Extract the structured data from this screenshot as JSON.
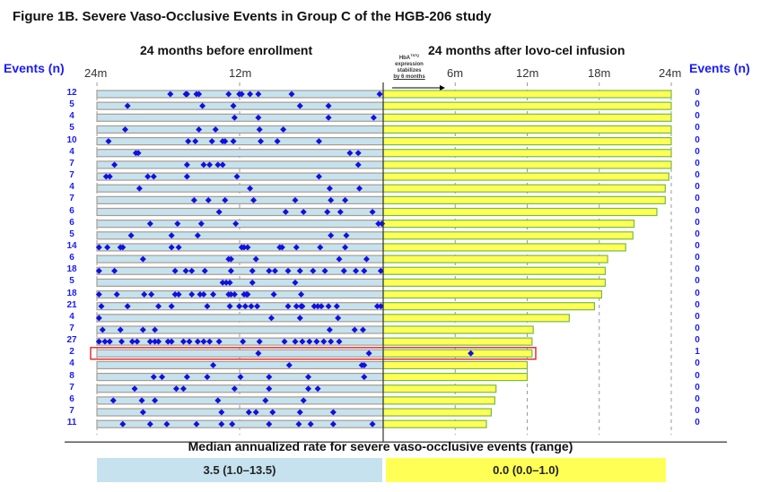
{
  "chart_data": {
    "type": "scatter",
    "title": "Figure 1B. Severe Vaso-Occlusive Events in Group C of the HGB-206 study",
    "left_panel": {
      "title": "24 months before enrollment",
      "ticks": [
        "24m",
        "12m"
      ],
      "xlim_months_before": [
        24,
        0
      ]
    },
    "right_panel": {
      "title": "24 months after lovo-cel infusion",
      "ticks": [
        "6m",
        "12m",
        "18m",
        "24m"
      ],
      "xlim_months_after": [
        0,
        24
      ],
      "annotation": [
        "HbA",
        "T87Q",
        "expression",
        "stabilizes",
        "by 6 months"
      ]
    },
    "events_header": "Events (n)",
    "colors": {
      "before_bar": "#c6e2ee",
      "after_bar": "#ffff55",
      "after_border": "#77bb44",
      "event": "#1010e0",
      "highlight": "#e03030",
      "events_text": "#1a1aff"
    },
    "patients": [
      {
        "before_n": "12",
        "after_n": "0",
        "followup_months": 24,
        "before_events": [
          17.9,
          16.6,
          16.5,
          15.7,
          15.5,
          13.0,
          12.1,
          11.9,
          11.2,
          10.5,
          7.7,
          0.3
        ],
        "after_events": [],
        "highlight": false
      },
      {
        "before_n": "5",
        "after_n": "0",
        "followup_months": 24,
        "before_events": [
          21.5,
          15.2,
          12.6,
          7.0,
          4.6
        ],
        "after_events": [],
        "highlight": false
      },
      {
        "before_n": "4",
        "after_n": "0",
        "followup_months": 24,
        "before_events": [
          12.5,
          10.5,
          4.6,
          0.8
        ],
        "after_events": [],
        "highlight": false
      },
      {
        "before_n": "5",
        "after_n": "0",
        "followup_months": 24,
        "before_events": [
          21.7,
          15.5,
          14.1,
          10.4,
          8.4
        ],
        "after_events": [],
        "highlight": false
      },
      {
        "before_n": "10",
        "after_n": "0",
        "followup_months": 24,
        "before_events": [
          23.1,
          16.4,
          15.8,
          14.4,
          13.5,
          13.3,
          12.6,
          10.3,
          8.9,
          5.4
        ],
        "after_events": [],
        "highlight": false
      },
      {
        "before_n": "4",
        "after_n": "0",
        "followup_months": 24,
        "before_events": [
          20.8,
          20.6,
          2.8,
          2.1
        ],
        "after_events": [],
        "highlight": false
      },
      {
        "before_n": "7",
        "after_n": "0",
        "followup_months": 24,
        "before_events": [
          22.6,
          16.5,
          15.1,
          14.6,
          13.9,
          13.5,
          2.1
        ],
        "after_events": [],
        "highlight": false
      },
      {
        "before_n": "7",
        "after_n": "0",
        "followup_months": 23.8,
        "before_events": [
          23.3,
          23.0,
          19.8,
          19.3,
          16.5,
          12.3,
          5.4
        ],
        "after_events": [],
        "highlight": false
      },
      {
        "before_n": "4",
        "after_n": "0",
        "followup_months": 23.5,
        "before_events": [
          20.5,
          11.2,
          4.5,
          2.0
        ],
        "after_events": [],
        "highlight": false
      },
      {
        "before_n": "7",
        "after_n": "0",
        "followup_months": 23.5,
        "before_events": [
          15.9,
          14.7,
          13.3,
          10.9,
          7.4,
          4.4,
          3.2
        ],
        "after_events": [],
        "highlight": false
      },
      {
        "before_n": "6",
        "after_n": "0",
        "followup_months": 22.8,
        "before_events": [
          13.8,
          8.2,
          6.7,
          4.7,
          3.6,
          0.9
        ],
        "after_events": [],
        "highlight": false
      },
      {
        "before_n": "6",
        "after_n": "0",
        "followup_months": 20.9,
        "before_events": [
          19.6,
          17.3,
          15.3,
          12.4,
          0.4,
          0.1
        ],
        "after_events": [],
        "highlight": false
      },
      {
        "before_n": "5",
        "after_n": "0",
        "followup_months": 20.8,
        "before_events": [
          21.2,
          17.8,
          15.6,
          4.4,
          3.1
        ],
        "after_events": [],
        "highlight": false
      },
      {
        "before_n": "14",
        "after_n": "0",
        "followup_months": 20.2,
        "before_events": [
          23.9,
          23.2,
          22.1,
          21.9,
          17.8,
          17.2,
          11.9,
          11.7,
          11.4,
          8.7,
          8.5,
          7.3,
          5.3,
          3.2
        ],
        "after_events": [],
        "highlight": false
      },
      {
        "before_n": "6",
        "after_n": "0",
        "followup_months": 18.7,
        "before_events": [
          20.2,
          13.0,
          12.8,
          10.7,
          3.7,
          1.4
        ],
        "after_events": [],
        "highlight": false
      },
      {
        "before_n": "18",
        "after_n": "0",
        "followup_months": 18.5,
        "before_events": [
          23.9,
          22.6,
          17.5,
          16.6,
          16.1,
          15.0,
          12.8,
          11.0,
          9.6,
          9.1,
          8.0,
          7.0,
          5.9,
          4.9,
          3.3,
          2.3,
          1.6,
          0.2
        ],
        "after_events": [],
        "highlight": false
      },
      {
        "before_n": "5",
        "after_n": "0",
        "followup_months": 18.5,
        "before_events": [
          13.5,
          13.2,
          12.9,
          11.0,
          7.4
        ],
        "after_events": [],
        "highlight": false
      },
      {
        "before_n": "18",
        "after_n": "0",
        "followup_months": 18.2,
        "before_events": [
          23.9,
          22.4,
          20.1,
          19.5,
          17.5,
          17.2,
          16.1,
          15.4,
          15.1,
          14.3,
          13.0,
          12.8,
          12.5,
          11.7,
          11.5,
          11.4,
          9.2,
          6.9
        ],
        "after_events": [],
        "highlight": false
      },
      {
        "before_n": "21",
        "after_n": "0",
        "followup_months": 17.6,
        "before_events": [
          23.7,
          21.5,
          18.9,
          17.8,
          14.8,
          12.9,
          12.1,
          11.6,
          11.1,
          10.6,
          8.0,
          7.3,
          6.9,
          6.8,
          5.8,
          5.5,
          5.2,
          4.6,
          3.9,
          0.5,
          0.2
        ],
        "after_events": [],
        "highlight": false
      },
      {
        "before_n": "4",
        "after_n": "0",
        "followup_months": 15.5,
        "before_events": [
          23.9,
          9.4,
          7.0,
          3.8
        ],
        "after_events": [],
        "highlight": false
      },
      {
        "before_n": "7",
        "after_n": "0",
        "followup_months": 12.5,
        "before_events": [
          23.6,
          22.1,
          20.2,
          19.2,
          4.5,
          2.4,
          1.7
        ],
        "after_events": [],
        "highlight": false
      },
      {
        "before_n": "27",
        "after_n": "0",
        "followup_months": 12.4,
        "before_events": [
          23.9,
          23.4,
          23.0,
          22.0,
          21.1,
          20.7,
          19.6,
          19.2,
          18.9,
          18.1,
          17.8,
          16.8,
          16.3,
          15.6,
          15.1,
          14.6,
          13.8,
          11.8,
          10.4,
          8.3,
          7.4,
          6.8,
          6.2,
          5.6,
          5.0,
          4.4,
          3.7
        ],
        "after_events": [],
        "highlight": false
      },
      {
        "before_n": "2",
        "after_n": "1",
        "followup_months": 12.4,
        "before_events": [
          10.5,
          1.2
        ],
        "after_events": [
          7.3
        ],
        "highlight": true
      },
      {
        "before_n": "4",
        "after_n": "0",
        "followup_months": 12.0,
        "before_events": [
          14.3,
          7.9,
          1.8,
          1.6
        ],
        "after_events": [],
        "highlight": false
      },
      {
        "before_n": "8",
        "after_n": "0",
        "followup_months": 12.0,
        "before_events": [
          19.3,
          18.6,
          16.5,
          14.8,
          12.0,
          9.6,
          6.3,
          1.6
        ],
        "after_events": [],
        "highlight": false
      },
      {
        "before_n": "7",
        "after_n": "0",
        "followup_months": 9.4,
        "before_events": [
          20.9,
          17.4,
          16.8,
          12.5,
          9.6,
          6.3,
          5.5
        ],
        "after_events": [],
        "highlight": false
      },
      {
        "before_n": "6",
        "after_n": "0",
        "followup_months": 9.3,
        "before_events": [
          22.7,
          20.3,
          19.2,
          13.9,
          9.9,
          6.7
        ],
        "after_events": [],
        "highlight": false
      },
      {
        "before_n": "7",
        "after_n": "0",
        "followup_months": 9.0,
        "before_events": [
          20.2,
          13.6,
          11.3,
          10.7,
          9.3,
          7.0,
          4.2
        ],
        "after_events": [],
        "highlight": false
      },
      {
        "before_n": "11",
        "after_n": "0",
        "followup_months": 8.6,
        "before_events": [
          21.9,
          19.6,
          18.2,
          15.7,
          13.6,
          12.7,
          9.6,
          7.1,
          6.1,
          4.2,
          0.9
        ],
        "after_events": [],
        "highlight": false
      }
    ],
    "median": {
      "title": "Median annualized rate for severe vaso-occlusive events (range)",
      "before": "3.5 (1.0–13.5)",
      "after": "0.0 (0.0–1.0)"
    }
  }
}
